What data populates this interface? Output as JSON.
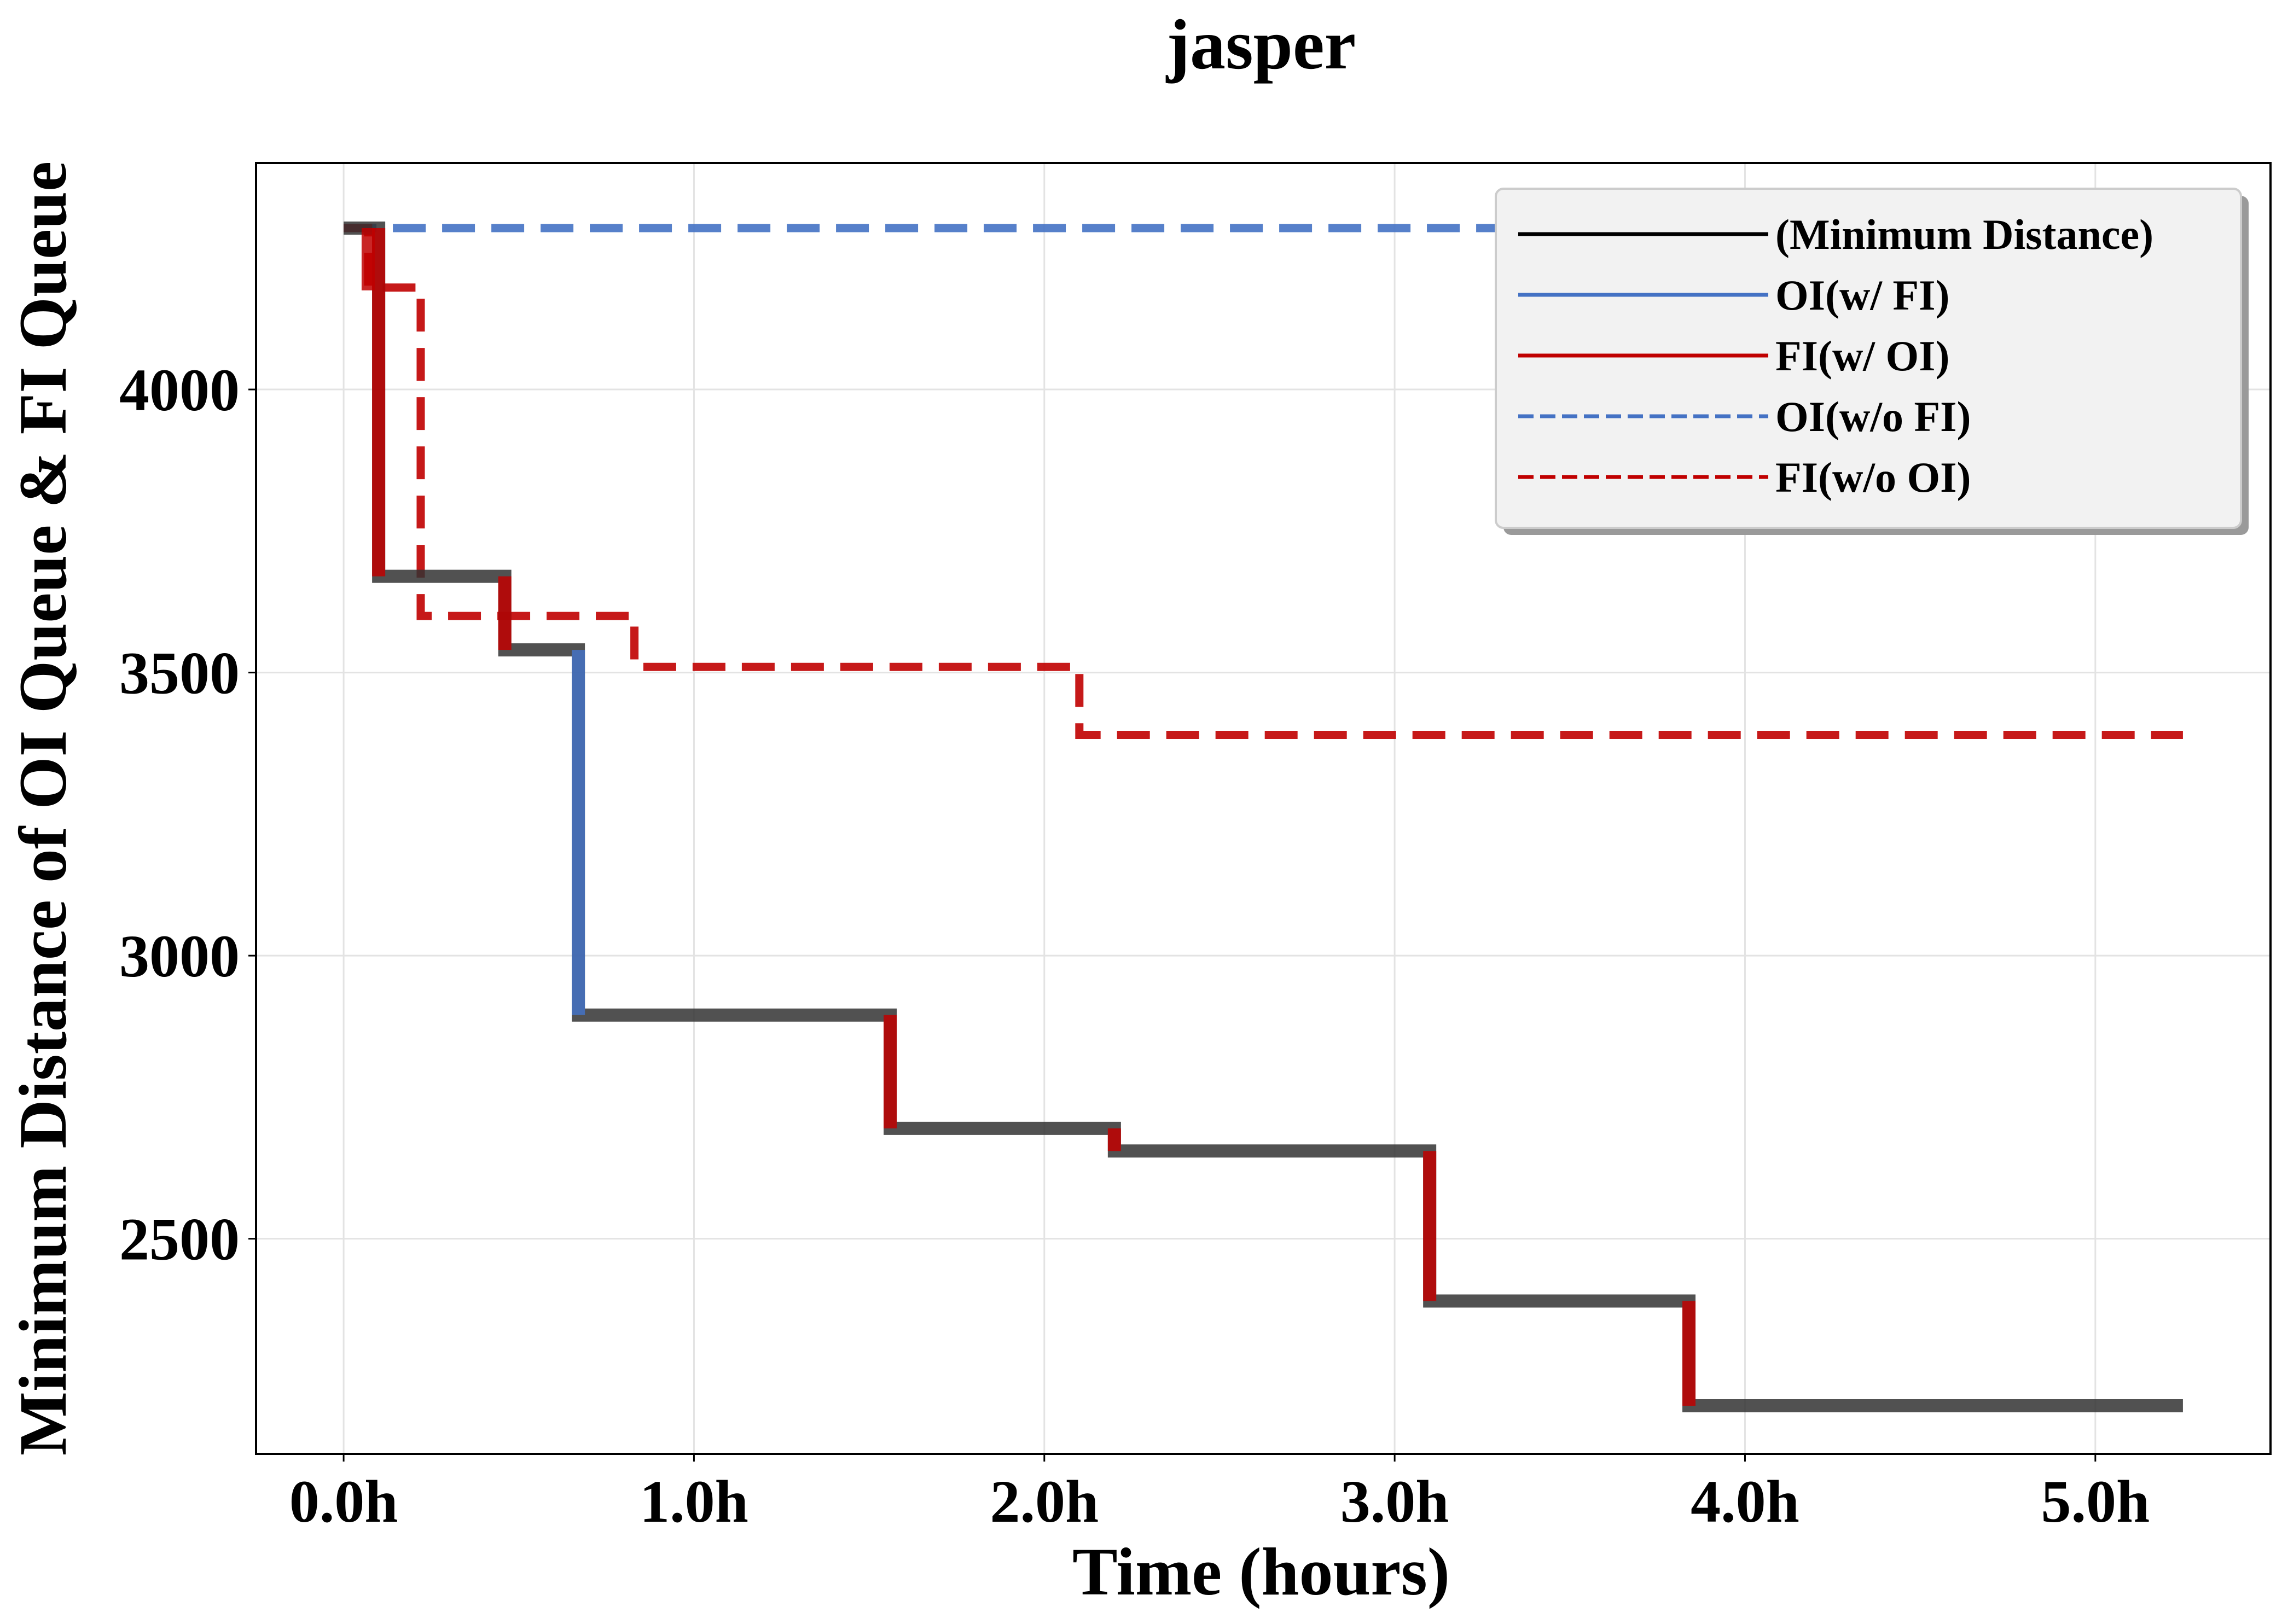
{
  "chart_data": {
    "type": "line",
    "step": true,
    "title": "jasper",
    "xlabel": "Time (hours)",
    "ylabel": "Minimum Distance of OI Queue & FI Queue",
    "xlim": [
      -0.25,
      5.5
    ],
    "ylim": [
      2120,
      4400
    ],
    "x_ticks": [
      0,
      1,
      2,
      3,
      4,
      5
    ],
    "x_tick_labels": [
      "0.0h",
      "1.0h",
      "2.0h",
      "3.0h",
      "4.0h",
      "5.0h"
    ],
    "y_ticks": [
      2500,
      3000,
      3500,
      4000
    ],
    "y_tick_labels": [
      "2500",
      "3000",
      "3500",
      "4000"
    ],
    "grid": true,
    "legend_position": "top-right",
    "series": [
      {
        "name": "(Minimum Distance)",
        "color": "#333333",
        "style": "solid",
        "x": [
          0,
          0.1,
          0.46,
          0.67,
          1.56,
          2.2,
          3.1,
          3.84,
          5.25
        ],
        "y": [
          4285,
          3670,
          3540,
          2895,
          2695,
          2655,
          2390,
          2205,
          2205
        ]
      },
      {
        "name": "OI(w/ FI)",
        "color": "#4472c4",
        "style": "solid",
        "segments": [
          {
            "x": [
              0.67,
              0.67
            ],
            "y": [
              3540,
              2895
            ]
          }
        ]
      },
      {
        "name": "FI(w/ OI)",
        "color": "#c00000",
        "style": "solid",
        "segments": [
          {
            "x": [
              0.07,
              0.07
            ],
            "y": [
              4285,
              4175
            ]
          },
          {
            "x": [
              0.1,
              0.1
            ],
            "y": [
              4285,
              3670
            ]
          },
          {
            "x": [
              0.46,
              0.46
            ],
            "y": [
              3670,
              3540
            ]
          },
          {
            "x": [
              1.56,
              1.56
            ],
            "y": [
              2895,
              2695
            ]
          },
          {
            "x": [
              2.2,
              2.2
            ],
            "y": [
              2695,
              2655
            ]
          },
          {
            "x": [
              3.1,
              3.1
            ],
            "y": [
              2655,
              2390
            ]
          },
          {
            "x": [
              3.84,
              3.84
            ],
            "y": [
              2390,
              2205
            ]
          }
        ]
      },
      {
        "name": "OI(w/o FI)",
        "color": "#4472c4",
        "style": "dashed",
        "x": [
          0,
          3.5
        ],
        "y": [
          4285,
          4285
        ]
      },
      {
        "name": "FI(w/o OI)",
        "color": "#c00000",
        "style": "dashed",
        "x": [
          0,
          0.07,
          0.22,
          0.83,
          2.1,
          5.25
        ],
        "y": [
          4285,
          4180,
          3600,
          3510,
          3390,
          3390
        ]
      }
    ]
  }
}
